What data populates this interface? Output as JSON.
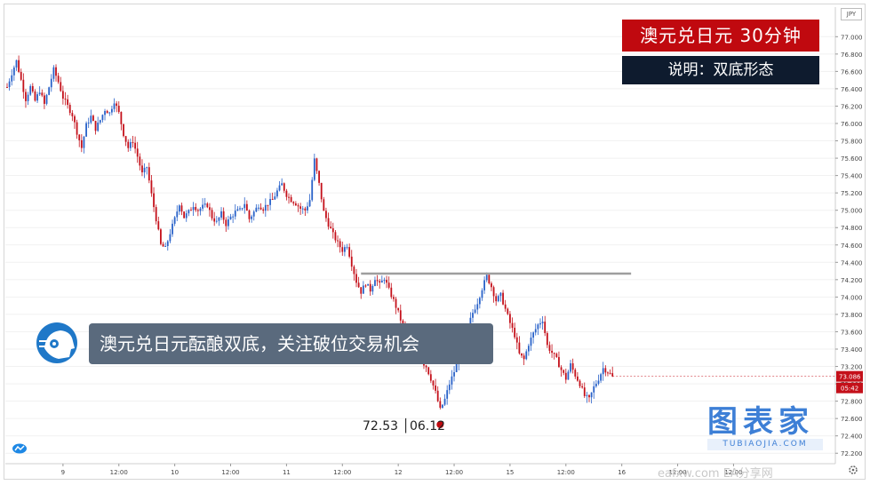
{
  "header": {
    "title": "澳元兑日元  30分钟",
    "subtitle": "说明：双底形态"
  },
  "banner": {
    "text": "澳元兑日元酝酿双底，关注破位交易机会"
  },
  "low_annotation": {
    "value": "72.53",
    "date": "06.12"
  },
  "logo": {
    "main": "图表家",
    "sub": "TUBIAOJIA.COM"
  },
  "watermark": "eafxw.com  EA分享网",
  "colors": {
    "up": "#2962c9",
    "down": "#c4101a",
    "resistance": "#9e9e9e",
    "low_marker": "#c0090f",
    "title_bg": "#c0090f",
    "subtitle_bg": "#0e1b2e",
    "banner_bg": "#5a6a7d",
    "price_tag": "#c4101a"
  },
  "icons": [
    "robot-head-icon",
    "tradingview-logo-icon",
    "gear-icon"
  ],
  "chart_data": {
    "type": "candlestick",
    "symbol": "JPY",
    "timeframe": "30分钟",
    "ylim": [
      72.1,
      77.3
    ],
    "yticks": [
      "77.000",
      "76.800",
      "76.600",
      "76.400",
      "76.200",
      "76.000",
      "75.800",
      "75.600",
      "75.400",
      "75.200",
      "75.000",
      "74.800",
      "74.600",
      "74.400",
      "74.200",
      "74.000",
      "73.800",
      "73.600",
      "73.400",
      "73.200",
      "73.000",
      "72.800",
      "72.600",
      "72.400",
      "72.200"
    ],
    "x_labels": [
      {
        "label": "9",
        "bar": 24
      },
      {
        "label": "12:00",
        "bar": 48
      },
      {
        "label": "10",
        "bar": 72
      },
      {
        "label": "12:00",
        "bar": 96
      },
      {
        "label": "11",
        "bar": 120
      },
      {
        "label": "12:00",
        "bar": 144
      },
      {
        "label": "12",
        "bar": 168
      },
      {
        "label": "12:00",
        "bar": 192
      },
      {
        "label": "15",
        "bar": 216
      },
      {
        "label": "12:00",
        "bar": 240
      },
      {
        "label": "16",
        "bar": 264
      },
      {
        "label": "12:00",
        "bar": 288
      },
      {
        "label": "12:00",
        "bar": 312
      }
    ],
    "resistance": {
      "value": 74.27,
      "from_bar": 152,
      "to_bar": 268
    },
    "low_point": {
      "value": 72.53,
      "bar": 186
    },
    "last_price": "73.086",
    "countdown": "05:42",
    "anchors": [
      [
        0,
        76.42
      ],
      [
        2,
        76.58
      ],
      [
        4,
        76.72
      ],
      [
        6,
        76.5
      ],
      [
        8,
        76.28
      ],
      [
        10,
        76.42
      ],
      [
        12,
        76.26
      ],
      [
        14,
        76.38
      ],
      [
        16,
        76.22
      ],
      [
        18,
        76.42
      ],
      [
        20,
        76.62
      ],
      [
        22,
        76.48
      ],
      [
        24,
        76.3
      ],
      [
        26,
        76.2
      ],
      [
        28,
        76.1
      ],
      [
        30,
        75.9
      ],
      [
        32,
        75.72
      ],
      [
        34,
        75.98
      ],
      [
        36,
        76.08
      ],
      [
        38,
        75.94
      ],
      [
        40,
        76.04
      ],
      [
        42,
        76.16
      ],
      [
        44,
        76.12
      ],
      [
        46,
        76.26
      ],
      [
        48,
        76.12
      ],
      [
        50,
        75.88
      ],
      [
        52,
        75.72
      ],
      [
        54,
        75.8
      ],
      [
        56,
        75.62
      ],
      [
        58,
        75.42
      ],
      [
        60,
        75.5
      ],
      [
        62,
        75.18
      ],
      [
        64,
        74.9
      ],
      [
        66,
        74.6
      ],
      [
        68,
        74.56
      ],
      [
        70,
        74.74
      ],
      [
        72,
        74.9
      ],
      [
        74,
        75.08
      ],
      [
        76,
        74.92
      ],
      [
        78,
        74.98
      ],
      [
        80,
        75.06
      ],
      [
        82,
        75.0
      ],
      [
        84,
        75.04
      ],
      [
        86,
        75.06
      ],
      [
        88,
        74.92
      ],
      [
        90,
        74.86
      ],
      [
        92,
        74.96
      ],
      [
        94,
        74.84
      ],
      [
        96,
        74.92
      ],
      [
        98,
        74.98
      ],
      [
        100,
        75.0
      ],
      [
        102,
        75.08
      ],
      [
        104,
        74.9
      ],
      [
        106,
        74.98
      ],
      [
        108,
        75.06
      ],
      [
        110,
        75.02
      ],
      [
        112,
        75.08
      ],
      [
        114,
        75.12
      ],
      [
        116,
        75.22
      ],
      [
        118,
        75.3
      ],
      [
        120,
        75.18
      ],
      [
        122,
        75.12
      ],
      [
        124,
        75.08
      ],
      [
        126,
        75.02
      ],
      [
        128,
        75.0
      ],
      [
        130,
        75.12
      ],
      [
        132,
        75.58
      ],
      [
        134,
        75.3
      ],
      [
        136,
        74.98
      ],
      [
        138,
        74.84
      ],
      [
        140,
        74.72
      ],
      [
        142,
        74.62
      ],
      [
        144,
        74.54
      ],
      [
        146,
        74.6
      ],
      [
        148,
        74.38
      ],
      [
        150,
        74.18
      ],
      [
        152,
        74.06
      ],
      [
        154,
        74.16
      ],
      [
        156,
        74.08
      ],
      [
        158,
        74.22
      ],
      [
        160,
        74.14
      ],
      [
        162,
        74.22
      ],
      [
        164,
        74.08
      ],
      [
        166,
        73.96
      ],
      [
        168,
        73.82
      ],
      [
        170,
        73.66
      ],
      [
        172,
        73.52
      ],
      [
        174,
        73.4
      ],
      [
        176,
        73.32
      ],
      [
        178,
        73.26
      ],
      [
        180,
        73.2
      ],
      [
        182,
        73.06
      ],
      [
        184,
        72.9
      ],
      [
        186,
        72.7
      ],
      [
        188,
        72.82
      ],
      [
        190,
        73.0
      ],
      [
        192,
        73.14
      ],
      [
        194,
        73.3
      ],
      [
        196,
        73.48
      ],
      [
        198,
        73.66
      ],
      [
        200,
        73.82
      ],
      [
        202,
        73.94
      ],
      [
        204,
        74.1
      ],
      [
        206,
        74.24
      ],
      [
        208,
        74.12
      ],
      [
        210,
        73.96
      ],
      [
        212,
        74.02
      ],
      [
        214,
        73.86
      ],
      [
        216,
        73.7
      ],
      [
        218,
        73.56
      ],
      [
        220,
        73.34
      ],
      [
        222,
        73.28
      ],
      [
        224,
        73.46
      ],
      [
        226,
        73.58
      ],
      [
        228,
        73.68
      ],
      [
        230,
        73.74
      ],
      [
        232,
        73.44
      ],
      [
        234,
        73.36
      ],
      [
        236,
        73.28
      ],
      [
        238,
        73.16
      ],
      [
        240,
        73.06
      ],
      [
        242,
        73.22
      ],
      [
        244,
        73.1
      ],
      [
        246,
        73.0
      ],
      [
        248,
        72.86
      ],
      [
        250,
        72.82
      ],
      [
        252,
        72.96
      ],
      [
        254,
        73.06
      ],
      [
        256,
        73.18
      ],
      [
        258,
        73.14
      ],
      [
        260,
        73.086
      ]
    ]
  }
}
